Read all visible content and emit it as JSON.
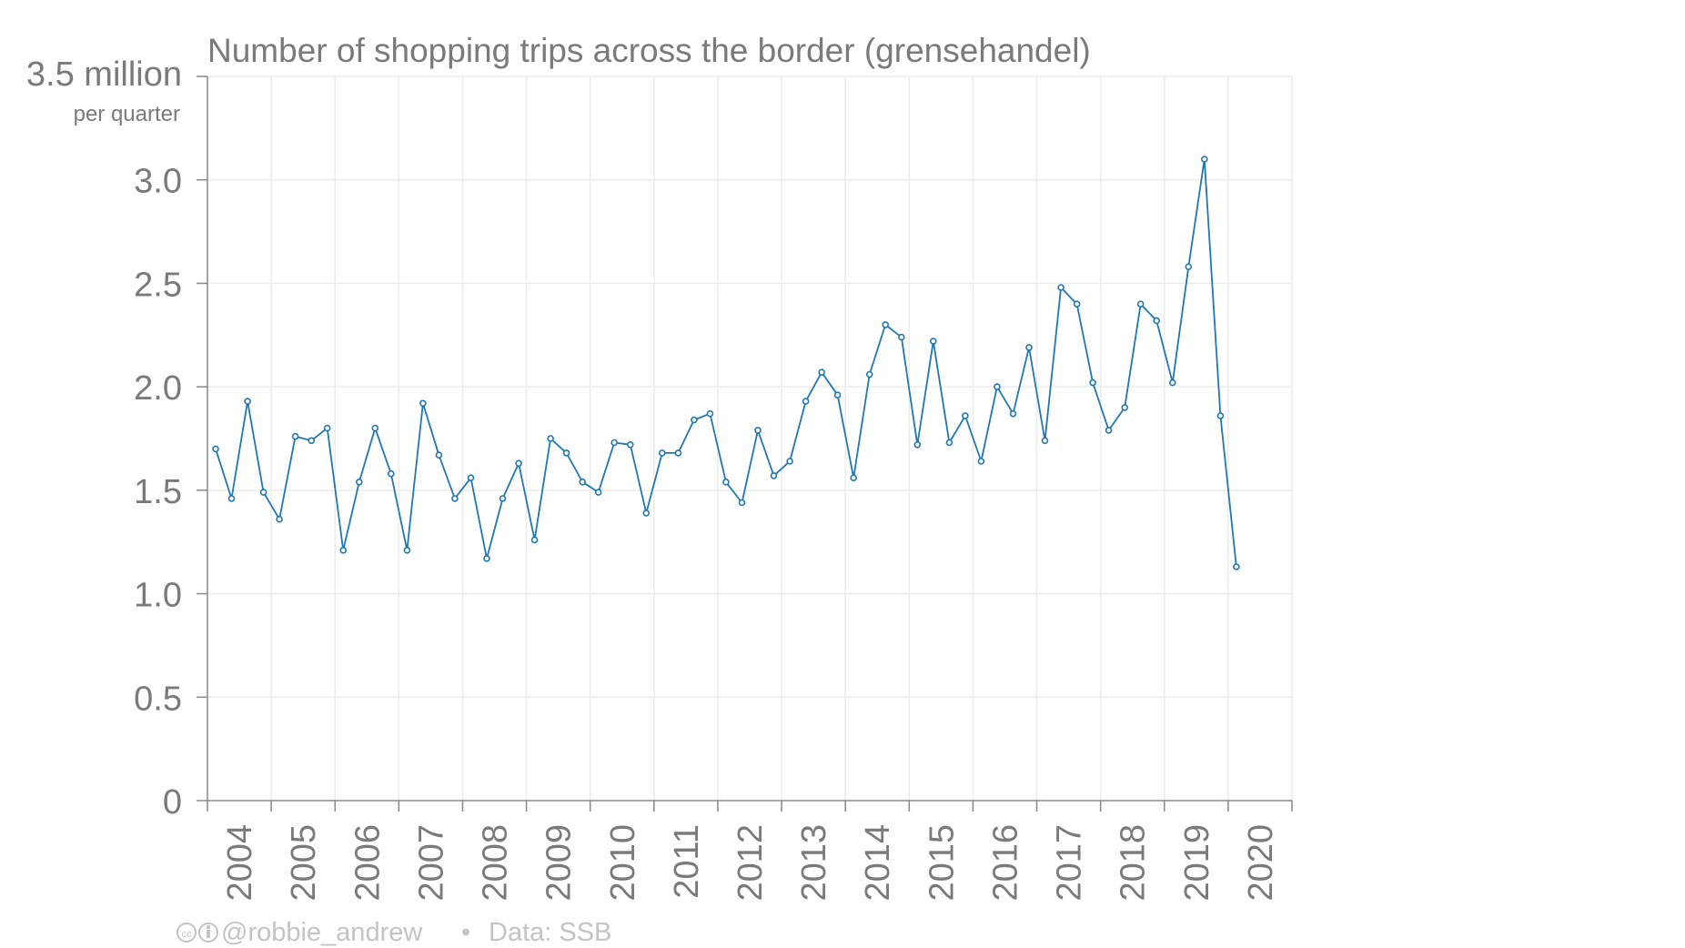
{
  "chart_data": {
    "type": "line",
    "title": "Number of shopping trips across the border (grensehandel)",
    "ylabel": "3.5 million",
    "ylabel_sub": "per quarter",
    "y_tick_labels": [
      "0",
      "0.5",
      "1.0",
      "1.5",
      "2.0",
      "2.5",
      "3.0"
    ],
    "y_ticks": [
      0,
      0.5,
      1.0,
      1.5,
      2.0,
      2.5,
      3.0
    ],
    "ylim": [
      0,
      3.5
    ],
    "x_tick_labels": [
      "2004",
      "2005",
      "2006",
      "2007",
      "2008",
      "2009",
      "2010",
      "2011",
      "2012",
      "2013",
      "2014",
      "2015",
      "2016",
      "2017",
      "2018",
      "2019",
      "2020"
    ],
    "xlim": [
      "2004",
      "2021"
    ],
    "grid": true,
    "colors": {
      "series": "#1f77b4",
      "text": "#7a7a7a",
      "grid": "#ececec",
      "axis": "#888888",
      "footer": "#c4c4c4"
    },
    "series": [
      {
        "x": [
          "2004Q1",
          "2004Q2",
          "2004Q3",
          "2004Q4",
          "2005Q1",
          "2005Q2",
          "2005Q3",
          "2005Q4",
          "2006Q1",
          "2006Q2",
          "2006Q3",
          "2006Q4",
          "2007Q1",
          "2007Q2",
          "2007Q3",
          "2007Q4",
          "2008Q1",
          "2008Q2",
          "2008Q3",
          "2008Q4",
          "2009Q1",
          "2009Q2",
          "2009Q3",
          "2009Q4",
          "2010Q1",
          "2010Q2",
          "2010Q3",
          "2010Q4",
          "2011Q1",
          "2011Q2",
          "2011Q3",
          "2011Q4",
          "2012Q1",
          "2012Q2",
          "2012Q3",
          "2012Q4",
          "2013Q1",
          "2013Q2",
          "2013Q3",
          "2013Q4",
          "2014Q1",
          "2014Q2",
          "2014Q3",
          "2014Q4",
          "2015Q1",
          "2015Q2",
          "2015Q3",
          "2015Q4",
          "2016Q1",
          "2016Q2",
          "2016Q3",
          "2016Q4",
          "2017Q1",
          "2017Q2",
          "2017Q3",
          "2017Q4",
          "2018Q1",
          "2018Q2",
          "2018Q3",
          "2018Q4",
          "2019Q1",
          "2019Q2",
          "2019Q3",
          "2019Q4",
          "2020Q1"
        ],
        "values": [
          1.7,
          1.46,
          1.93,
          1.49,
          1.36,
          1.76,
          1.74,
          1.8,
          1.21,
          1.54,
          1.8,
          1.58,
          1.21,
          1.92,
          1.67,
          1.46,
          1.56,
          1.17,
          1.46,
          1.63,
          1.26,
          1.75,
          1.68,
          1.54,
          1.49,
          1.73,
          1.72,
          1.39,
          1.68,
          1.68,
          1.84,
          1.87,
          1.54,
          1.44,
          1.79,
          1.57,
          1.64,
          1.93,
          2.07,
          1.96,
          1.56,
          2.06,
          2.3,
          2.24,
          1.72,
          2.22,
          1.73,
          1.86,
          1.64,
          2.0,
          1.87,
          2.19,
          1.74,
          2.48,
          2.4,
          2.02,
          1.79,
          1.9,
          2.4,
          2.32,
          2.02,
          2.58,
          3.1,
          1.86,
          1.13
        ]
      }
    ]
  },
  "footer": {
    "handle": "@robbie_andrew",
    "separator": "•",
    "source": "Data: SSB",
    "license_icon": "cc-by-icon"
  }
}
